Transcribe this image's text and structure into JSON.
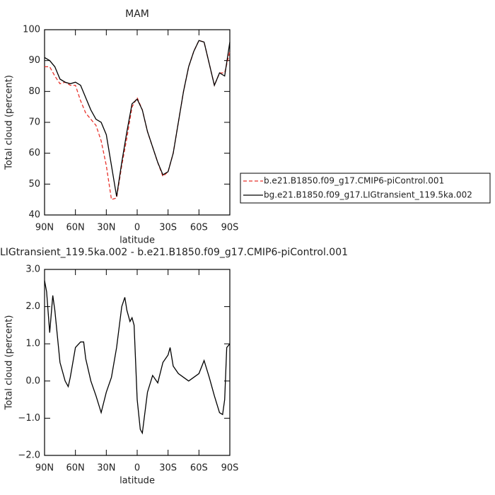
{
  "chart_data": [
    {
      "type": "line",
      "title": "MAM",
      "xlabel": "latitude",
      "ylabel": "Total cloud (percent)",
      "x": [
        90,
        85,
        80,
        75,
        70,
        65,
        60,
        55,
        50,
        45,
        40,
        35,
        30,
        25,
        20,
        15,
        10,
        5,
        0,
        -5,
        -10,
        -15,
        -20,
        -25,
        -30,
        -35,
        -40,
        -45,
        -50,
        -55,
        -60,
        -65,
        -70,
        -75,
        -80,
        -85,
        -90
      ],
      "series": [
        {
          "name": "b.e21.B1850.f09_g17.CMIP6-piControl.001",
          "color": "#e8322b",
          "dashed": true,
          "values": [
            88,
            88,
            85,
            82.5,
            83,
            82,
            82,
            77,
            73,
            71,
            69,
            64,
            56,
            45,
            45.5,
            56,
            65,
            75,
            78,
            74,
            67,
            62,
            57,
            52.5,
            54,
            60,
            70,
            80,
            88,
            93,
            96.5,
            96,
            89,
            82,
            86,
            86,
            93
          ]
        },
        {
          "name": "bg.e21.B1850.f09_g17.LIGtransient_119.5ka.002",
          "color": "#000000",
          "dashed": false,
          "values": [
            91,
            90,
            88,
            84,
            83,
            82.5,
            83,
            82,
            78,
            74,
            71,
            70,
            66,
            56,
            46,
            57,
            67,
            76,
            77.5,
            74,
            67,
            62,
            57,
            53,
            54,
            60,
            70,
            80,
            88,
            93,
            96.5,
            96,
            89,
            82,
            86,
            85,
            96
          ]
        }
      ],
      "xlim": [
        90,
        -90
      ],
      "xticks": [
        {
          "value": 90,
          "label": "90N"
        },
        {
          "value": 60,
          "label": "60N"
        },
        {
          "value": 30,
          "label": "30N"
        },
        0,
        {
          "value": -30,
          "label": "30S"
        },
        {
          "value": -60,
          "label": "60S"
        },
        {
          "value": -90,
          "label": "90S"
        }
      ],
      "ylim": [
        40,
        100
      ],
      "yticks": [
        40,
        50,
        60,
        70,
        80,
        90,
        100
      ],
      "legend": "right"
    },
    {
      "type": "line",
      "title": "LIGtransient_119.5ka.002 - b.e21.B1850.f09_g17.CMIP6-piControl.001",
      "xlabel": "latitude",
      "ylabel": "Total cloud (percent)",
      "x": [
        90,
        88,
        85,
        82,
        80,
        75,
        70,
        67,
        65,
        60,
        55,
        52,
        50,
        45,
        40,
        35,
        30,
        25,
        20,
        15,
        12,
        10,
        7,
        5,
        3,
        0,
        -3,
        -5,
        -10,
        -15,
        -20,
        -25,
        -30,
        -32,
        -35,
        -40,
        -45,
        -50,
        -55,
        -60,
        -65,
        -70,
        -75,
        -80,
        -83,
        -85,
        -87,
        -90
      ],
      "series": [
        {
          "name": null,
          "color": "#000000",
          "dashed": false,
          "values": [
            2.7,
            2.4,
            1.3,
            2.3,
            1.9,
            0.5,
            0.0,
            -0.15,
            0.1,
            0.9,
            1.05,
            1.05,
            0.6,
            0.0,
            -0.4,
            -0.85,
            -0.3,
            0.1,
            0.9,
            2.0,
            2.25,
            1.9,
            1.6,
            1.7,
            1.5,
            -0.5,
            -1.3,
            -1.4,
            -0.3,
            0.15,
            -0.05,
            0.5,
            0.7,
            0.9,
            0.4,
            0.2,
            0.1,
            0.0,
            0.1,
            0.2,
            0.55,
            0.1,
            -0.4,
            -0.85,
            -0.9,
            -0.5,
            0.9,
            1.0
          ]
        }
      ],
      "xlim": [
        90,
        -90
      ],
      "xticks": [
        {
          "value": 90,
          "label": "90N"
        },
        {
          "value": 60,
          "label": "60N"
        },
        {
          "value": 30,
          "label": "30N"
        },
        0,
        {
          "value": -30,
          "label": "30S"
        },
        {
          "value": -60,
          "label": "60S"
        },
        {
          "value": -90,
          "label": "90S"
        }
      ],
      "ylim": [
        -2,
        3
      ],
      "yticks": [
        {
          "value": -2,
          "label": "−2.0"
        },
        {
          "value": -1,
          "label": "−1.0"
        },
        {
          "value": 0,
          "label": "0.0"
        },
        {
          "value": 1,
          "label": "1.0"
        },
        {
          "value": 2,
          "label": "2.0"
        },
        {
          "value": 3,
          "label": "3.0"
        }
      ]
    }
  ]
}
